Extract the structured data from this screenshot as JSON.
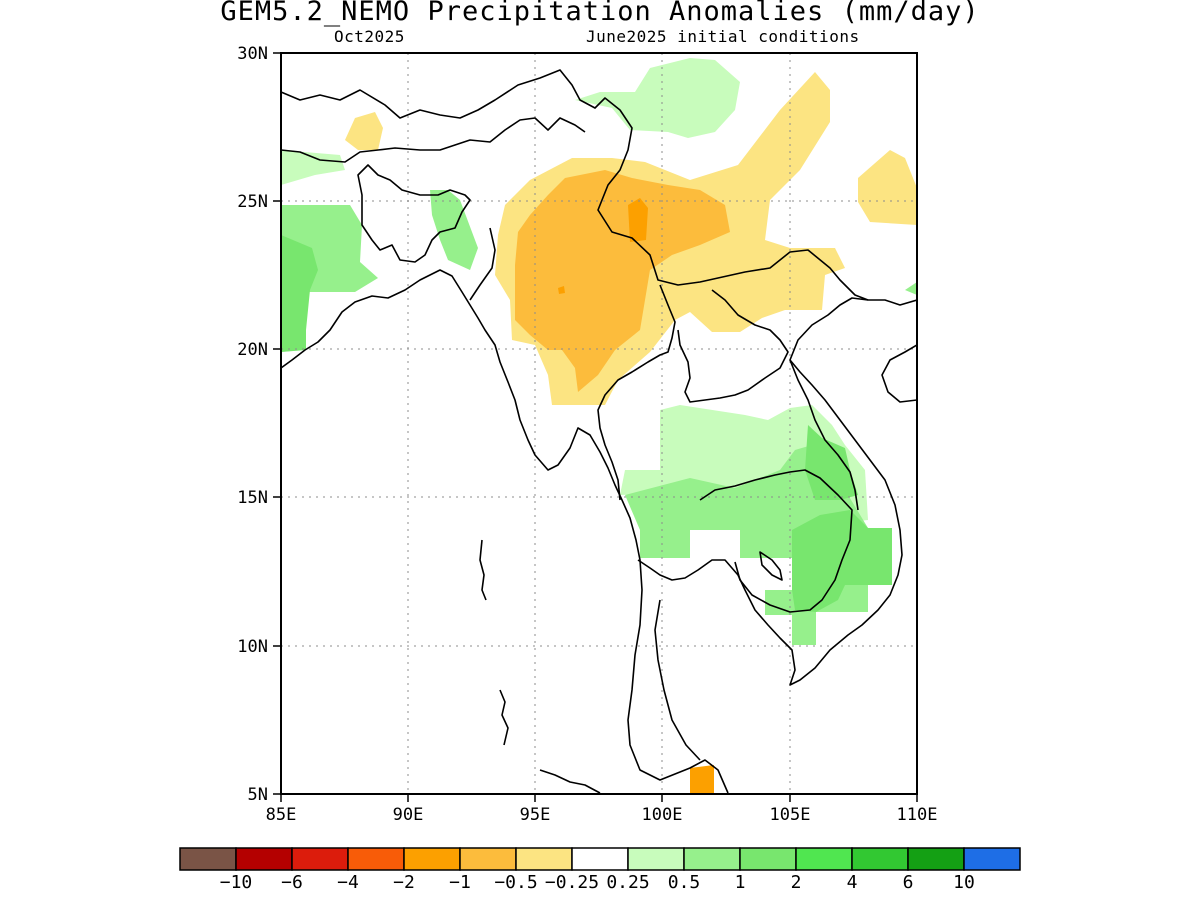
{
  "title": "GEM5.2_NEMO Precipitation Anomalies (mm/day)",
  "subtitle_left": "Oct2025",
  "subtitle_right": "June2025 initial conditions",
  "y_axis": {
    "ticks": [
      "30N",
      "25N",
      "20N",
      "15N",
      "10N",
      "5N"
    ]
  },
  "x_axis": {
    "ticks": [
      "85E",
      "90E",
      "95E",
      "100E",
      "105E",
      "110E"
    ]
  },
  "map_extent": {
    "lon": [
      85,
      110
    ],
    "lat": [
      5,
      30
    ]
  },
  "colorbar": {
    "labels": [
      "-10",
      "-6",
      "-4",
      "-2",
      "-1",
      "-0.5",
      "-0.25",
      "0.25",
      "0.5",
      "1",
      "2",
      "4",
      "6",
      "10"
    ],
    "colors": [
      "#7a5446",
      "#b40000",
      "#dc1c0c",
      "#f85c08",
      "#fca000",
      "#fcbc3c",
      "#fce482",
      "#ffffff",
      "#c8fcbc",
      "#96f08c",
      "#78e66e",
      "#50e650",
      "#32c832",
      "#14a014",
      "#1e6ee6"
    ]
  }
}
